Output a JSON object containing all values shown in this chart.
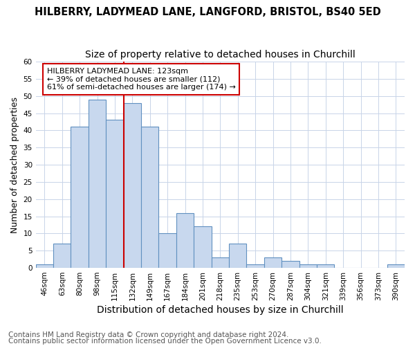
{
  "title1": "HILBERRY, LADYMEAD LANE, LANGFORD, BRISTOL, BS40 5ED",
  "title2": "Size of property relative to detached houses in Churchill",
  "xlabel": "Distribution of detached houses by size in Churchill",
  "ylabel": "Number of detached properties",
  "bar_labels": [
    "46sqm",
    "63sqm",
    "80sqm",
    "98sqm",
    "115sqm",
    "132sqm",
    "149sqm",
    "167sqm",
    "184sqm",
    "201sqm",
    "218sqm",
    "235sqm",
    "253sqm",
    "270sqm",
    "287sqm",
    "304sqm",
    "321sqm",
    "339sqm",
    "356sqm",
    "373sqm",
    "390sqm"
  ],
  "bar_values": [
    1,
    7,
    41,
    49,
    43,
    48,
    41,
    10,
    16,
    12,
    3,
    7,
    1,
    3,
    2,
    1,
    1,
    0,
    0,
    0,
    1
  ],
  "bar_color": "#c8d8ee",
  "bar_edge_color": "#6090c0",
  "vline_x": 4.5,
  "vline_color": "#cc0000",
  "annotation_text": "HILBERRY LADYMEAD LANE: 123sqm\n← 39% of detached houses are smaller (112)\n61% of semi-detached houses are larger (174) →",
  "annotation_box_color": "#ffffff",
  "annotation_box_edge_color": "#cc0000",
  "ylim": [
    0,
    60
  ],
  "yticks": [
    0,
    5,
    10,
    15,
    20,
    25,
    30,
    35,
    40,
    45,
    50,
    55,
    60
  ],
  "footer1": "Contains HM Land Registry data © Crown copyright and database right 2024.",
  "footer2": "Contains public sector information licensed under the Open Government Licence v3.0.",
  "bg_color": "#ffffff",
  "plot_bg_color": "#ffffff",
  "grid_color": "#c8d4e8",
  "title1_fontsize": 10.5,
  "title2_fontsize": 10,
  "xlabel_fontsize": 10,
  "ylabel_fontsize": 9,
  "tick_fontsize": 7.5,
  "annotation_fontsize": 8,
  "footer_fontsize": 7.5
}
